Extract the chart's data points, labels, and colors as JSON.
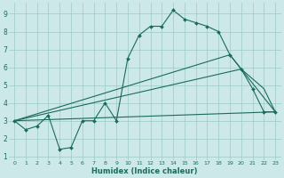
{
  "line1_x": [
    0,
    1,
    2,
    3,
    4,
    5,
    6,
    7,
    8,
    9,
    10,
    11,
    12,
    13,
    14,
    15,
    16,
    17,
    18,
    19,
    20,
    21,
    22,
    23
  ],
  "line1_y": [
    3.0,
    2.5,
    2.7,
    3.3,
    1.4,
    1.5,
    3.0,
    3.0,
    4.0,
    3.0,
    6.5,
    7.8,
    8.3,
    8.3,
    9.2,
    8.7,
    8.5,
    8.3,
    8.0,
    6.7,
    5.9,
    4.8,
    3.5,
    3.5
  ],
  "line2_x": [
    0,
    23
  ],
  "line2_y": [
    3.0,
    3.5
  ],
  "line3_x": [
    0,
    19,
    23
  ],
  "line3_y": [
    3.0,
    6.7,
    3.5
  ],
  "line4_x": [
    0,
    20,
    22,
    23
  ],
  "line4_y": [
    3.0,
    5.9,
    4.8,
    3.5
  ],
  "line_color": "#1a6b5a",
  "bg_color": "#cce8e8",
  "grid_color": "#9dc8c8",
  "xlabel": "Humidex (Indice chaleur)",
  "xlim": [
    -0.5,
    23.5
  ],
  "ylim": [
    0.8,
    9.6
  ],
  "yticks": [
    1,
    2,
    3,
    4,
    5,
    6,
    7,
    8,
    9
  ],
  "xticks": [
    0,
    1,
    2,
    3,
    4,
    5,
    6,
    7,
    8,
    9,
    10,
    11,
    12,
    13,
    14,
    15,
    16,
    17,
    18,
    19,
    20,
    21,
    22,
    23
  ],
  "marker": "D",
  "markersize": 2.0,
  "linewidth": 0.8,
  "xlabel_fontsize": 6.0,
  "tick_fontsize_x": 4.5,
  "tick_fontsize_y": 5.5
}
